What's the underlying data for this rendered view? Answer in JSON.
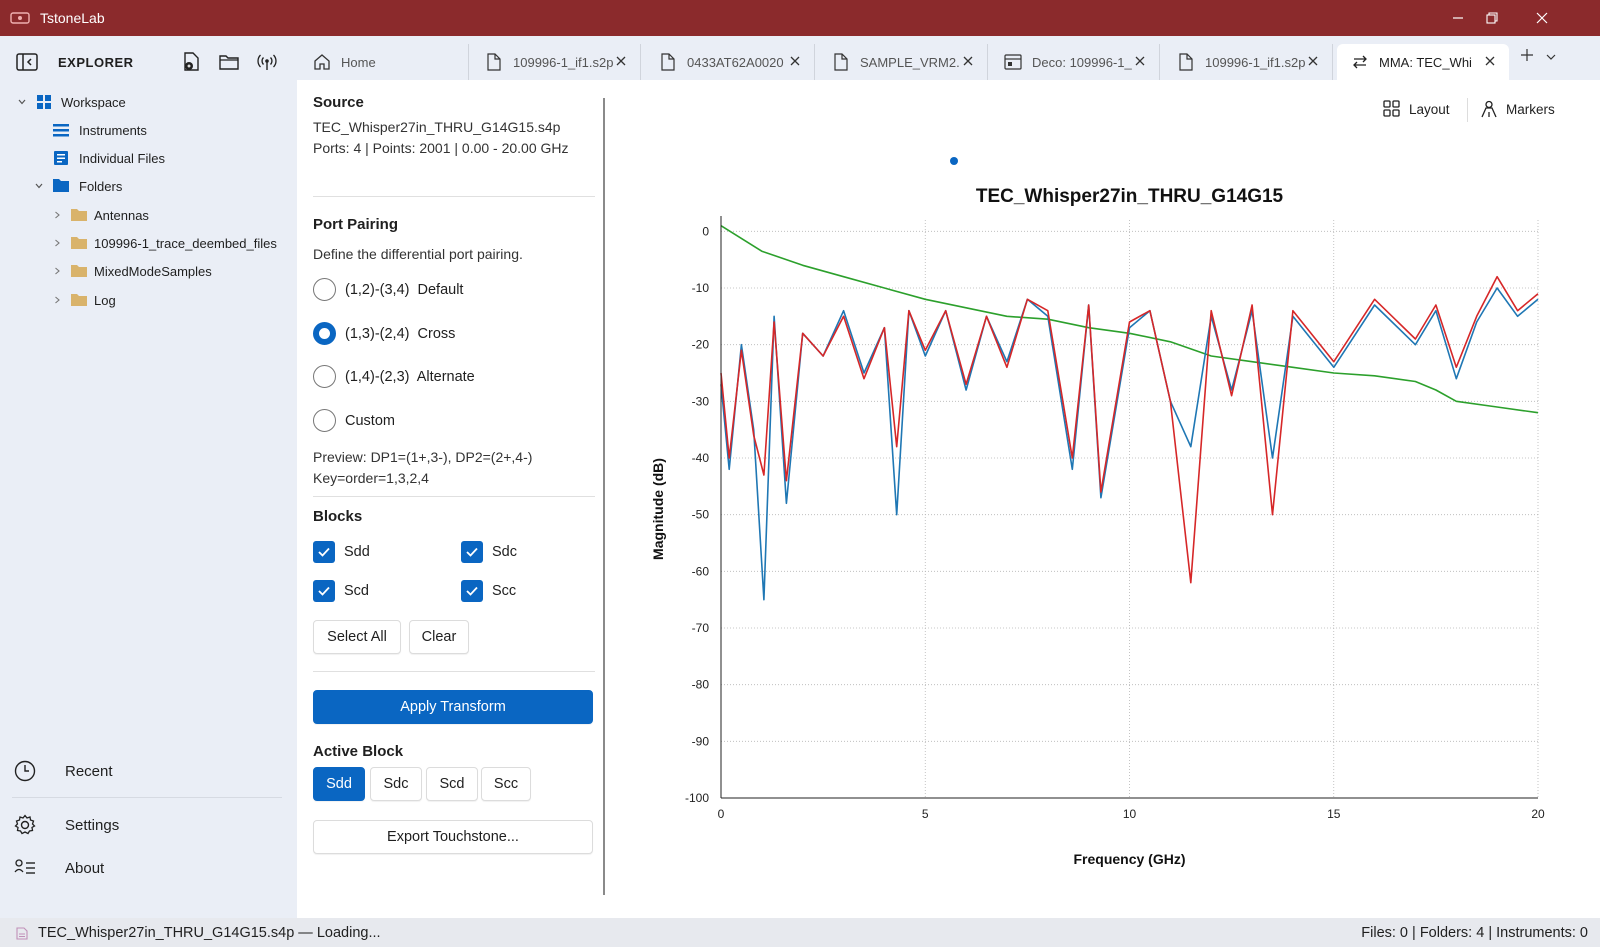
{
  "app": {
    "title": "TstoneLab"
  },
  "sidebar": {
    "header": "EXPLORER",
    "tree": [
      {
        "label": "Workspace"
      },
      {
        "label": "Instruments"
      },
      {
        "label": "Individual Files"
      },
      {
        "label": "Folders"
      },
      {
        "label": "Antennas"
      },
      {
        "label": "109996-1_trace_deembed_files"
      },
      {
        "label": "MixedModeSamples"
      },
      {
        "label": "Log"
      }
    ],
    "bottom": [
      {
        "label": "Recent"
      },
      {
        "label": "Settings"
      },
      {
        "label": "About"
      }
    ]
  },
  "tabs": [
    {
      "label": "Home"
    },
    {
      "label": "109996-1_if1.s2p"
    },
    {
      "label": "0433AT62A0020"
    },
    {
      "label": "SAMPLE_VRM2."
    },
    {
      "label": "Deco: 109996-1_"
    },
    {
      "label": "109996-1_if1.s2p"
    },
    {
      "label": "MMA: TEC_Whi"
    }
  ],
  "panel": {
    "source_title": "Source",
    "source_file": "TEC_Whisper27in_THRU_G14G15.s4p",
    "source_info": "Ports: 4  |  Points: 2001  |  0.00 - 20.00 GHz",
    "pairing_title": "Port Pairing",
    "pairing_desc": "Define the differential port pairing.",
    "options": [
      {
        "label": "(1,2)-(3,4)  Default",
        "selected": false
      },
      {
        "label": "(1,3)-(2,4)  Cross",
        "selected": true
      },
      {
        "label": "(1,4)-(2,3)  Alternate",
        "selected": false
      },
      {
        "label": "Custom",
        "selected": false
      }
    ],
    "preview_line1": "Preview: DP1=(1+,3-), DP2=(2+,4-)",
    "preview_line2": "Key=order=1,3,2,4",
    "blocks_title": "Blocks",
    "blocks": [
      {
        "label": "Sdd",
        "checked": true
      },
      {
        "label": "Sdc",
        "checked": true
      },
      {
        "label": "Scd",
        "checked": true
      },
      {
        "label": "Scc",
        "checked": true
      }
    ],
    "select_all": "Select All",
    "clear": "Clear",
    "apply": "Apply Transform",
    "active_title": "Active Block",
    "active_blocks": [
      "Sdd",
      "Sdc",
      "Scd",
      "Scc"
    ],
    "active_selected": "Sdd",
    "export": "Export Touchstone..."
  },
  "toolbar": {
    "layout": "Layout",
    "markers": "Markers"
  },
  "chart_data": {
    "type": "line",
    "title": "TEC_Whisper27in_THRU_G14G15",
    "xlabel": "Frequency (GHz)",
    "ylabel": "Magnitude (dB)",
    "xlim": [
      0,
      20
    ],
    "ylim": [
      -100,
      2
    ],
    "xticks": [
      0,
      5,
      10,
      15,
      20
    ],
    "yticks": [
      0,
      -10,
      -20,
      -30,
      -40,
      -50,
      -60,
      -70,
      -80,
      -90,
      -100
    ],
    "grid": true,
    "colors": {
      "green": "#2ca02c",
      "blue": "#1f77b4",
      "red": "#d62728"
    },
    "series": [
      {
        "color": "#2ca02c",
        "x": [
          0,
          1,
          2,
          3,
          4,
          5,
          6,
          7,
          8,
          9,
          10,
          11,
          12,
          13,
          14,
          15,
          16,
          17,
          17.5,
          18,
          19,
          20
        ],
        "y": [
          1,
          -3.5,
          -6,
          -8,
          -10,
          -12,
          -13.5,
          -15,
          -15.5,
          -17,
          -18,
          -19.5,
          -22,
          -23,
          -24,
          -25,
          -25.5,
          -26.5,
          -28,
          -30,
          -31,
          -32
        ]
      },
      {
        "color": "#1f77b4",
        "x": [
          0,
          0.2,
          0.5,
          0.8,
          1.05,
          1.3,
          1.6,
          2,
          2.5,
          3,
          3.5,
          4,
          4.3,
          4.6,
          5,
          5.5,
          6,
          6.5,
          7,
          7.5,
          8,
          8.6,
          9,
          9.3,
          10,
          10.5,
          11,
          11.5,
          12,
          12.5,
          13,
          13.5,
          14,
          15,
          16,
          17,
          17.5,
          18,
          18.5,
          19,
          19.5,
          20
        ],
        "y": [
          -27,
          -42,
          -20,
          -35,
          -65,
          -15,
          -48,
          -18,
          -22,
          -14,
          -25,
          -17,
          -50,
          -14,
          -22,
          -14,
          -28,
          -15,
          -23,
          -12,
          -15,
          -42,
          -13,
          -47,
          -17,
          -14,
          -30,
          -38,
          -15,
          -28,
          -14,
          -40,
          -15,
          -24,
          -13,
          -20,
          -14,
          -26,
          -16,
          -10,
          -15,
          -12
        ]
      },
      {
        "color": "#d62728",
        "x": [
          0,
          0.2,
          0.5,
          0.8,
          1.05,
          1.3,
          1.6,
          2,
          2.5,
          3,
          3.5,
          4,
          4.3,
          4.6,
          5,
          5.5,
          6,
          6.5,
          7,
          7.5,
          8,
          8.6,
          9,
          9.3,
          10,
          10.5,
          11,
          11.5,
          12,
          12.5,
          13,
          13.5,
          14,
          15,
          16,
          17,
          17.5,
          18,
          18.5,
          19,
          19.5,
          20
        ],
        "y": [
          -25,
          -40,
          -21,
          -36,
          -43,
          -16,
          -44,
          -18,
          -22,
          -15,
          -26,
          -17,
          -38,
          -14,
          -21,
          -14,
          -27,
          -15,
          -24,
          -12,
          -14,
          -40,
          -13,
          -46,
          -16,
          -14,
          -30,
          -62,
          -14,
          -29,
          -13,
          -50,
          -14,
          -23,
          -12,
          -19,
          -13,
          -24,
          -15,
          -8,
          -14,
          -11
        ]
      }
    ]
  },
  "status": {
    "left": "TEC_Whisper27in_THRU_G14G15.s4p — Loading...",
    "right": "Files: 0 | Folders: 4 | Instruments: 0"
  }
}
